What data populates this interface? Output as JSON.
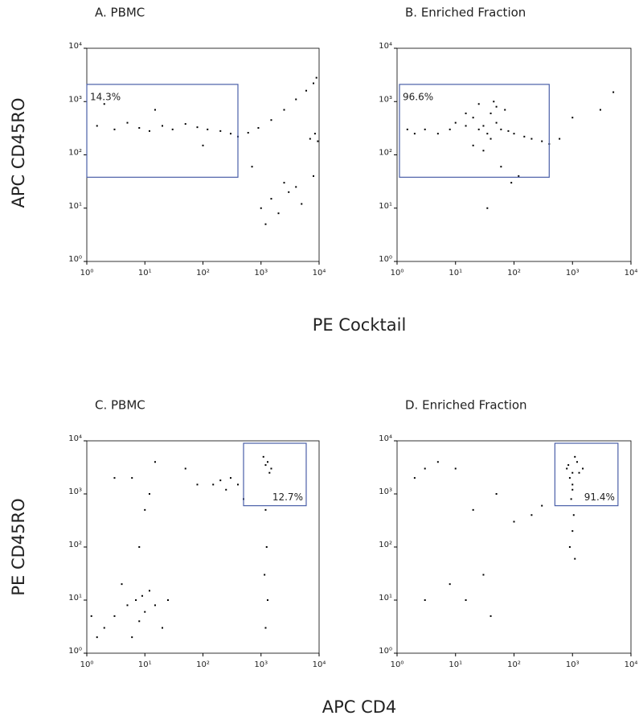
{
  "rows": [
    {
      "xlabel": "PE Cocktail",
      "ylabel": "APC CD45RO"
    },
    {
      "xlabel": "APC CD4",
      "ylabel": "PE CD45RO"
    }
  ],
  "chart_data": [
    {
      "type": "scatter",
      "title": "A. PBMC",
      "log_x": true,
      "log_y": true,
      "color": "#000000",
      "xlim": [
        1,
        10000
      ],
      "ylim": [
        1,
        10000
      ],
      "xticks": [
        {
          "value": 1,
          "label": "10⁰"
        },
        {
          "value": 10,
          "label": "10¹"
        },
        {
          "value": 100,
          "label": "10²"
        },
        {
          "value": 1000,
          "label": "10³"
        },
        {
          "value": 10000,
          "label": "10⁴"
        }
      ],
      "yticks": [
        {
          "value": 1,
          "label": "10⁰"
        },
        {
          "value": 10,
          "label": "10¹"
        },
        {
          "value": 100,
          "label": "10²"
        },
        {
          "value": 1000,
          "label": "10³"
        },
        {
          "value": 10000,
          "label": "10⁴"
        }
      ],
      "x": [
        1.5,
        3,
        5,
        8,
        12,
        20,
        30,
        50,
        80,
        120,
        200,
        300,
        400,
        600,
        900,
        1500,
        2500,
        4000,
        6000,
        8000,
        9000,
        7000,
        8500,
        9500,
        1000,
        1500,
        2000,
        3000,
        5000,
        1200,
        2500,
        4000,
        8000,
        2,
        15,
        100,
        700
      ],
      "y": [
        350,
        300,
        400,
        320,
        280,
        350,
        300,
        380,
        330,
        300,
        280,
        250,
        220,
        260,
        320,
        450,
        700,
        1100,
        1600,
        2200,
        2800,
        200,
        250,
        180,
        10,
        15,
        8,
        20,
        12,
        5,
        30,
        25,
        40,
        900,
        700,
        150,
        60
      ],
      "gate": {
        "x": [
          1,
          400
        ],
        "y": [
          38,
          2100
        ],
        "label": "14.3%",
        "label_corner": "top-left",
        "color": "#4a5fa8"
      }
    },
    {
      "type": "scatter",
      "title": "B. Enriched Fraction",
      "log_x": true,
      "log_y": true,
      "color": "#000000",
      "xlim": [
        1,
        10000
      ],
      "ylim": [
        1,
        10000
      ],
      "xticks": [
        {
          "value": 1,
          "label": "10⁰"
        },
        {
          "value": 10,
          "label": "10¹"
        },
        {
          "value": 100,
          "label": "10²"
        },
        {
          "value": 1000,
          "label": "10³"
        },
        {
          "value": 10000,
          "label": "10⁴"
        }
      ],
      "yticks": [
        {
          "value": 1,
          "label": "10⁰"
        },
        {
          "value": 10,
          "label": "10¹"
        },
        {
          "value": 100,
          "label": "10²"
        },
        {
          "value": 1000,
          "label": "10³"
        },
        {
          "value": 10000,
          "label": "10⁴"
        }
      ],
      "x": [
        5,
        8,
        10,
        15,
        20,
        25,
        30,
        35,
        40,
        50,
        60,
        80,
        100,
        150,
        200,
        300,
        400,
        600,
        20,
        30,
        40,
        50,
        70,
        15,
        25,
        45,
        3,
        2,
        1.5,
        1000,
        3000,
        5000,
        60,
        35,
        90,
        120
      ],
      "y": [
        250,
        300,
        400,
        350,
        500,
        300,
        350,
        250,
        600,
        400,
        300,
        280,
        250,
        220,
        200,
        180,
        160,
        200,
        150,
        120,
        200,
        800,
        700,
        600,
        900,
        1000,
        300,
        250,
        300,
        500,
        700,
        1500,
        60,
        10,
        30,
        40
      ],
      "gate": {
        "x": [
          1.1,
          400
        ],
        "y": [
          38,
          2100
        ],
        "label": "96.6%",
        "label_corner": "top-left",
        "color": "#4a5fa8"
      }
    },
    {
      "type": "scatter",
      "title": "C. PBMC",
      "log_x": true,
      "log_y": true,
      "color": "#000000",
      "xlim": [
        1,
        10000
      ],
      "ylim": [
        1,
        10000
      ],
      "xticks": [
        {
          "value": 1,
          "label": "10⁰"
        },
        {
          "value": 10,
          "label": "10¹"
        },
        {
          "value": 100,
          "label": "10²"
        },
        {
          "value": 1000,
          "label": "10³"
        },
        {
          "value": 10000,
          "label": "10⁴"
        }
      ],
      "yticks": [
        {
          "value": 1,
          "label": "10⁰"
        },
        {
          "value": 10,
          "label": "10¹"
        },
        {
          "value": 100,
          "label": "10²"
        },
        {
          "value": 1000,
          "label": "10³"
        },
        {
          "value": 10000,
          "label": "10⁴"
        }
      ],
      "x": [
        2,
        3,
        5,
        7,
        8,
        10,
        12,
        15,
        20,
        4,
        6,
        9,
        1.2,
        1.5,
        25,
        8,
        10,
        12,
        6,
        15,
        150,
        200,
        300,
        400,
        250,
        1200,
        1300,
        1500,
        1100,
        1400,
        1200,
        1250,
        1150,
        1300,
        1200,
        3,
        50,
        80,
        500
      ],
      "y": [
        3,
        5,
        8,
        10,
        4,
        6,
        15,
        8,
        3,
        20,
        2,
        12,
        5,
        2,
        10,
        100,
        500,
        1000,
        2000,
        4000,
        1500,
        1800,
        2000,
        1500,
        1200,
        3500,
        4000,
        3000,
        5000,
        2500,
        500,
        100,
        30,
        10,
        3,
        2000,
        3000,
        1500,
        800
      ],
      "gate": {
        "x": [
          500,
          6000
        ],
        "y": [
          600,
          9000
        ],
        "label": "12.7%",
        "label_corner": "bottom-right",
        "color": "#4a5fa8"
      }
    },
    {
      "type": "scatter",
      "title": "D. Enriched Fraction",
      "log_x": true,
      "log_y": true,
      "color": "#000000",
      "xlim": [
        1,
        10000
      ],
      "ylim": [
        1,
        10000
      ],
      "xticks": [
        {
          "value": 1,
          "label": "10⁰"
        },
        {
          "value": 10,
          "label": "10¹"
        },
        {
          "value": 100,
          "label": "10²"
        },
        {
          "value": 1000,
          "label": "10³"
        },
        {
          "value": 10000,
          "label": "10⁴"
        }
      ],
      "yticks": [
        {
          "value": 1,
          "label": "10⁰"
        },
        {
          "value": 10,
          "label": "10¹"
        },
        {
          "value": 100,
          "label": "10²"
        },
        {
          "value": 1000,
          "label": "10³"
        },
        {
          "value": 10000,
          "label": "10⁴"
        }
      ],
      "x": [
        800,
        1000,
        1200,
        1500,
        900,
        1100,
        1300,
        1000,
        950,
        1050,
        1000,
        900,
        1100,
        850,
        1000,
        2,
        3,
        5,
        10,
        20,
        50,
        100,
        200,
        30,
        8,
        15,
        300,
        3,
        40
      ],
      "y": [
        3000,
        2500,
        4000,
        3000,
        2000,
        5000,
        2500,
        1500,
        800,
        400,
        200,
        100,
        60,
        3500,
        1200,
        2000,
        3000,
        4000,
        3000,
        500,
        1000,
        300,
        400,
        30,
        20,
        10,
        600,
        10,
        5
      ],
      "gate": {
        "x": [
          500,
          6000
        ],
        "y": [
          600,
          9000
        ],
        "label": "91.4%",
        "label_corner": "bottom-right",
        "color": "#4a5fa8"
      }
    }
  ]
}
